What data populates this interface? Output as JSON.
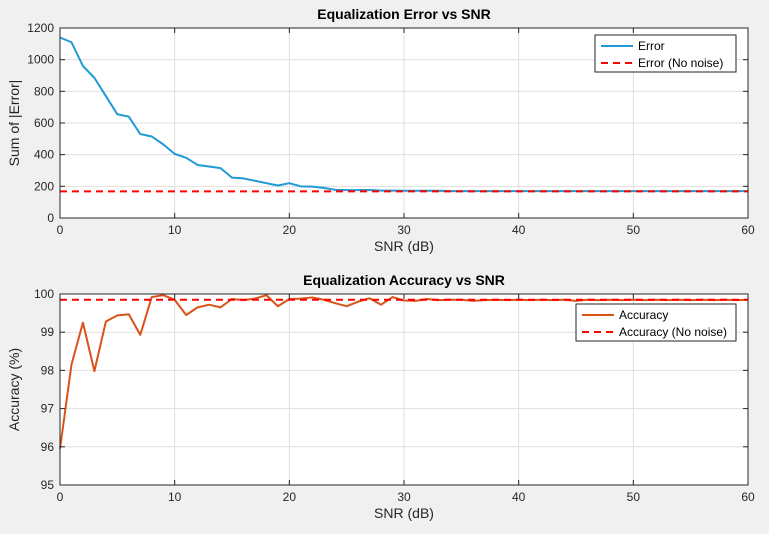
{
  "chart_data": [
    {
      "type": "line",
      "title": "Equalization Error vs SNR",
      "xlabel": "SNR (dB)",
      "ylabel": "Sum of |Error|",
      "xlim": [
        0,
        60
      ],
      "ylim": [
        0,
        1200
      ],
      "xticks": [
        0,
        10,
        20,
        30,
        40,
        50,
        60
      ],
      "yticks": [
        0,
        200,
        400,
        600,
        800,
        1000,
        1200
      ],
      "grid": true,
      "legend_position": "top-right",
      "series": [
        {
          "name": "Error",
          "color": "#1f9ad6",
          "style": "solid",
          "x": [
            0,
            1,
            2,
            3,
            4,
            5,
            6,
            7,
            8,
            9,
            10,
            11,
            12,
            13,
            14,
            15,
            16,
            17,
            18,
            19,
            20,
            21,
            22,
            23,
            24,
            25,
            26,
            27,
            28,
            29,
            30,
            31,
            32,
            33,
            34,
            35,
            36,
            37,
            38,
            39,
            40,
            41,
            42,
            43,
            44,
            45,
            46,
            47,
            48,
            49,
            50,
            51,
            52,
            53,
            54,
            55,
            56,
            57,
            58,
            59,
            60
          ],
          "y": [
            1140,
            1110,
            960,
            885,
            770,
            655,
            640,
            530,
            515,
            465,
            405,
            380,
            335,
            325,
            315,
            255,
            250,
            235,
            220,
            205,
            220,
            200,
            198,
            190,
            178,
            176,
            176,
            177,
            173,
            173,
            172,
            172,
            172,
            172,
            170,
            170,
            170,
            170,
            170,
            170,
            170,
            170,
            170,
            170,
            170,
            170,
            170,
            170,
            170,
            170,
            170,
            170,
            170,
            170,
            170,
            170,
            170,
            170,
            170,
            170,
            170
          ]
        },
        {
          "name": "Error (No noise)",
          "color": "#ff0000",
          "style": "dashed",
          "x": [
            0,
            60
          ],
          "y": [
            168,
            168
          ]
        }
      ]
    },
    {
      "type": "line",
      "title": "Equalization Accuracy vs SNR",
      "xlabel": "SNR (dB)",
      "ylabel": "Accuracy (%)",
      "xlim": [
        0,
        60
      ],
      "ylim": [
        95,
        100
      ],
      "xticks": [
        0,
        10,
        20,
        30,
        40,
        50,
        60
      ],
      "yticks": [
        95,
        96,
        97,
        98,
        99,
        100
      ],
      "grid": true,
      "legend_position": "upper-right",
      "series": [
        {
          "name": "Accuracy",
          "color": "#d95319",
          "style": "solid",
          "x": [
            0,
            1,
            2,
            3,
            4,
            5,
            6,
            7,
            8,
            9,
            10,
            11,
            12,
            13,
            14,
            15,
            16,
            17,
            18,
            19,
            20,
            21,
            22,
            23,
            24,
            25,
            26,
            27,
            28,
            29,
            30,
            31,
            32,
            33,
            34,
            35,
            36,
            37,
            38,
            39,
            40,
            41,
            42,
            43,
            44,
            45,
            46,
            47,
            48,
            49,
            50,
            51,
            52,
            53,
            54,
            55,
            56,
            57,
            58,
            59,
            60
          ],
          "y": [
            95.95,
            98.15,
            99.25,
            97.98,
            99.28,
            99.44,
            99.47,
            98.93,
            99.92,
            99.97,
            99.85,
            99.45,
            99.65,
            99.72,
            99.65,
            99.87,
            99.84,
            99.88,
            99.97,
            99.68,
            99.87,
            99.88,
            99.91,
            99.85,
            99.76,
            99.68,
            99.8,
            99.89,
            99.72,
            99.92,
            99.83,
            99.82,
            99.87,
            99.84,
            99.85,
            99.85,
            99.82,
            99.84,
            99.85,
            99.84,
            99.85,
            99.84,
            99.85,
            99.84,
            99.85,
            99.82,
            99.85,
            99.84,
            99.85,
            99.84,
            99.85,
            99.84,
            99.85,
            99.84,
            99.85,
            99.84,
            99.85,
            99.84,
            99.85,
            99.84,
            99.85
          ]
        },
        {
          "name": "Accuracy (No noise)",
          "color": "#ff0000",
          "style": "dashed",
          "x": [
            0,
            60
          ],
          "y": [
            99.85,
            99.85
          ]
        }
      ]
    }
  ]
}
